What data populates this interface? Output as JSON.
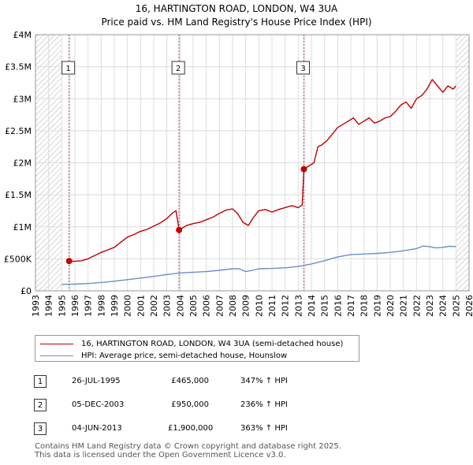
{
  "chart_data": {
    "type": "line",
    "title": "16, HARTINGTON ROAD, LONDON, W4 3UA",
    "subtitle": "Price paid vs. HM Land Registry's House Price Index (HPI)",
    "xlabel": "",
    "ylabel": "",
    "xlim": [
      1993,
      2026
    ],
    "ylim": [
      0,
      4000000
    ],
    "x_ticks": [
      "1993",
      "1994",
      "1995",
      "1996",
      "1997",
      "1998",
      "1999",
      "2000",
      "2001",
      "2002",
      "2003",
      "2004",
      "2005",
      "2006",
      "2007",
      "2008",
      "2009",
      "2010",
      "2011",
      "2012",
      "2013",
      "2014",
      "2015",
      "2016",
      "2017",
      "2018",
      "2019",
      "2020",
      "2021",
      "2022",
      "2023",
      "2024",
      "2025",
      "2026"
    ],
    "y_ticks": [
      {
        "value": 0,
        "label": "£0"
      },
      {
        "value": 500000,
        "label": "£500K"
      },
      {
        "value": 1000000,
        "label": "£1M"
      },
      {
        "value": 1500000,
        "label": "£1.5M"
      },
      {
        "value": 2000000,
        "label": "£2M"
      },
      {
        "value": 2500000,
        "label": "£2.5M"
      },
      {
        "value": 3000000,
        "label": "£3M"
      },
      {
        "value": 3500000,
        "label": "£3.5M"
      },
      {
        "value": 4000000,
        "label": "£4M"
      }
    ],
    "grid": true,
    "hatched_ranges": [
      [
        1993,
        1995.0
      ],
      [
        2025.0,
        2026
      ]
    ],
    "series": [
      {
        "name": "16, HARTINGTON ROAD, LONDON, W4 3UA (semi-detached house)",
        "color": "#c00000",
        "x": [
          1995.56,
          1996.0,
          1996.5,
          1997.0,
          1997.5,
          1998.0,
          1998.5,
          1999.0,
          1999.5,
          2000.0,
          2000.5,
          2001.0,
          2001.5,
          2002.0,
          2002.5,
          2003.0,
          2003.4,
          2003.7,
          2003.93,
          2004.5,
          2005.0,
          2005.5,
          2006.0,
          2006.5,
          2007.0,
          2007.5,
          2008.0,
          2008.4,
          2008.8,
          2009.2,
          2009.6,
          2010.0,
          2010.5,
          2011.0,
          2011.5,
          2012.0,
          2012.5,
          2013.0,
          2013.3,
          2013.43,
          2013.8,
          2014.2,
          2014.5,
          2014.8,
          2015.2,
          2015.6,
          2016.0,
          2016.4,
          2016.8,
          2017.2,
          2017.6,
          2018.0,
          2018.4,
          2018.8,
          2019.2,
          2019.6,
          2020.0,
          2020.4,
          2020.8,
          2021.2,
          2021.6,
          2022.0,
          2022.4,
          2022.8,
          2023.2,
          2023.6,
          2024.0,
          2024.4,
          2024.8,
          2025.0
        ],
        "values": [
          465000,
          460000,
          470000,
          500000,
          550000,
          600000,
          640000,
          680000,
          760000,
          840000,
          880000,
          930000,
          960000,
          1010000,
          1060000,
          1130000,
          1210000,
          1250000,
          950000,
          1020000,
          1050000,
          1070000,
          1110000,
          1150000,
          1210000,
          1260000,
          1280000,
          1200000,
          1070000,
          1020000,
          1150000,
          1250000,
          1270000,
          1230000,
          1270000,
          1300000,
          1330000,
          1300000,
          1340000,
          1900000,
          1950000,
          2000000,
          2250000,
          2280000,
          2350000,
          2450000,
          2550000,
          2600000,
          2650000,
          2700000,
          2600000,
          2650000,
          2700000,
          2620000,
          2650000,
          2700000,
          2720000,
          2800000,
          2900000,
          2950000,
          2850000,
          3000000,
          3050000,
          3150000,
          3300000,
          3200000,
          3100000,
          3200000,
          3150000,
          3200000
        ]
      },
      {
        "name": "HPI: Average price, semi-detached house, Hounslow",
        "color": "#6a8fc7",
        "x": [
          1995.0,
          1996.0,
          1997.0,
          1998.0,
          1999.0,
          2000.0,
          2001.0,
          2002.0,
          2003.0,
          2004.0,
          2005.0,
          2006.0,
          2007.0,
          2008.0,
          2008.5,
          2009.0,
          2009.5,
          2010.0,
          2011.0,
          2012.0,
          2013.0,
          2014.0,
          2015.0,
          2016.0,
          2017.0,
          2018.0,
          2019.0,
          2020.0,
          2021.0,
          2022.0,
          2022.5,
          2023.0,
          2023.5,
          2024.0,
          2024.5,
          2025.0
        ],
        "values": [
          100000,
          105000,
          115000,
          130000,
          150000,
          175000,
          200000,
          225000,
          255000,
          280000,
          290000,
          300000,
          320000,
          345000,
          345000,
          300000,
          320000,
          345000,
          350000,
          360000,
          380000,
          420000,
          470000,
          530000,
          565000,
          575000,
          585000,
          600000,
          625000,
          660000,
          700000,
          690000,
          670000,
          680000,
          695000,
          690000
        ]
      }
    ],
    "sale_markers": [
      {
        "label": "1",
        "x": 1995.56,
        "value": 465000
      },
      {
        "label": "2",
        "x": 2003.93,
        "value": 950000
      },
      {
        "label": "3",
        "x": 2013.43,
        "value": 1900000
      }
    ]
  },
  "legend": {
    "items": [
      {
        "label": "16, HARTINGTON ROAD, LONDON, W4 3UA (semi-detached house)"
      },
      {
        "label": "HPI: Average price, semi-detached house, Hounslow"
      }
    ]
  },
  "sales": [
    {
      "num": "1",
      "date": "26-JUL-1995",
      "price": "£465,000",
      "hpi": "347% ↑ HPI"
    },
    {
      "num": "2",
      "date": "05-DEC-2003",
      "price": "£950,000",
      "hpi": "236% ↑ HPI"
    },
    {
      "num": "3",
      "date": "04-JUN-2013",
      "price": "£1,900,000",
      "hpi": "363% ↑ HPI"
    }
  ],
  "footer": {
    "line1": "Contains HM Land Registry data © Crown copyright and database right 2025.",
    "line2": "This data is licensed under the Open Government Licence v3.0."
  }
}
